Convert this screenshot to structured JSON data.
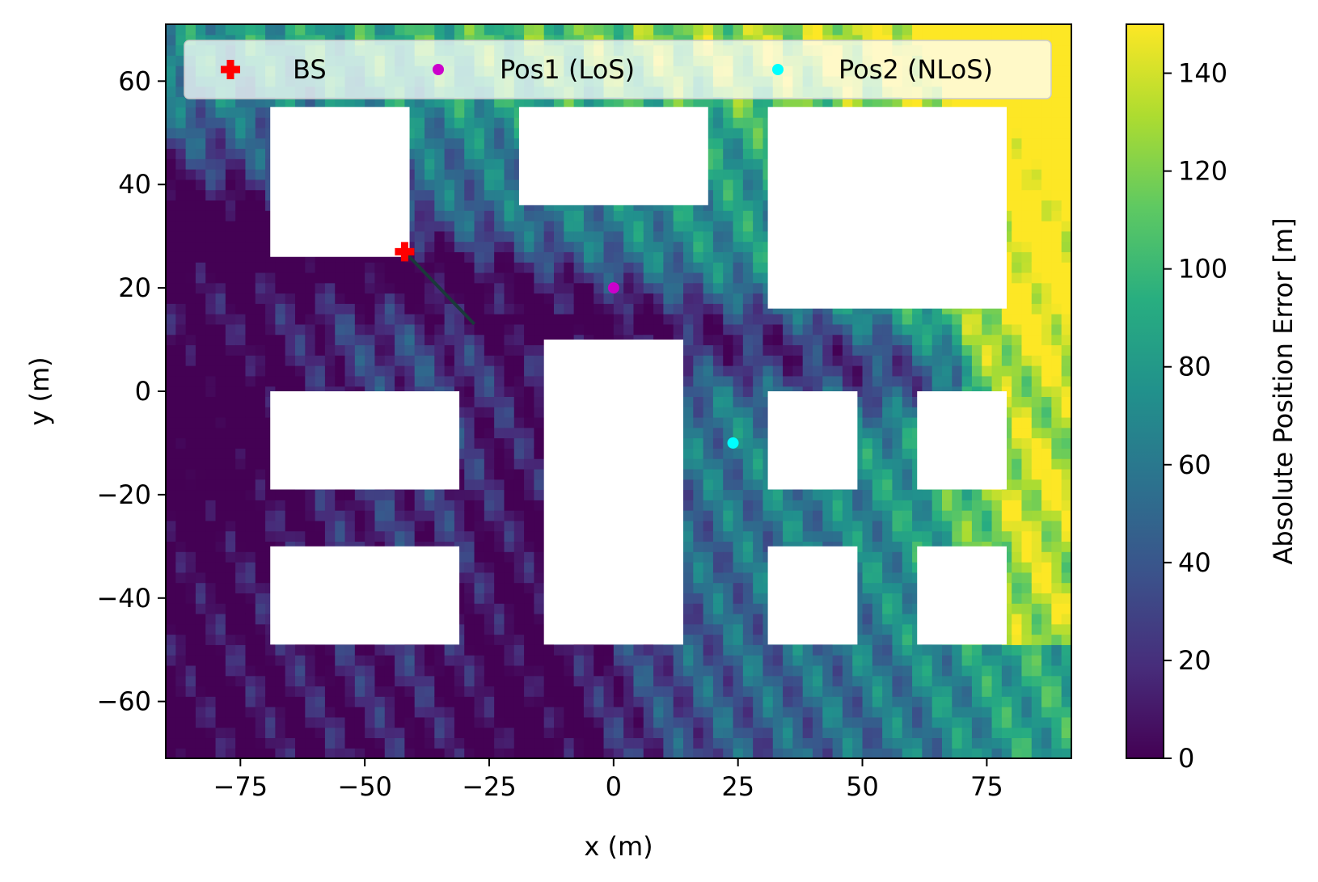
{
  "chart_data": {
    "type": "heatmap",
    "xlabel": "x (m)",
    "ylabel": "y (m)",
    "xlim": [
      -90,
      92
    ],
    "ylim": [
      -71,
      71
    ],
    "x_ticks": [
      -75,
      -50,
      -25,
      0,
      25,
      50,
      75
    ],
    "x_tick_labels": [
      "−75",
      "−50",
      "−25",
      "0",
      "25",
      "50",
      "75"
    ],
    "y_ticks": [
      -60,
      -40,
      -20,
      0,
      20,
      40,
      60
    ],
    "y_tick_labels": [
      "−60",
      "−40",
      "−20",
      "0",
      "20",
      "40",
      "60"
    ],
    "colorbar": {
      "label": "Absolute Position Error [m]",
      "range": [
        0,
        150
      ],
      "ticks": [
        0,
        20,
        40,
        60,
        80,
        100,
        120,
        140
      ],
      "tick_labels": [
        "0",
        "20",
        "40",
        "60",
        "80",
        "100",
        "120",
        "140"
      ],
      "colormap": "viridis"
    },
    "buildings": [
      {
        "x0": -69,
        "x1": -41,
        "y0": 26,
        "y1": 55
      },
      {
        "x0": -19,
        "x1": 19,
        "y0": 36,
        "y1": 55
      },
      {
        "x0": 31,
        "x1": 79,
        "y0": 16,
        "y1": 55
      },
      {
        "x0": -69,
        "x1": -31,
        "y0": -19,
        "y1": 0
      },
      {
        "x0": -14,
        "x1": 14,
        "y0": -49,
        "y1": 10
      },
      {
        "x0": 31,
        "x1": 49,
        "y0": -19,
        "y1": 0
      },
      {
        "x0": 61,
        "x1": 79,
        "y0": -19,
        "y1": 0
      },
      {
        "x0": -69,
        "x1": -31,
        "y0": -49,
        "y1": -30
      },
      {
        "x0": 31,
        "x1": 49,
        "y0": -49,
        "y1": -30
      },
      {
        "x0": 61,
        "x1": 79,
        "y0": -49,
        "y1": -30
      }
    ],
    "series": [
      {
        "name": "BS",
        "marker": "plus",
        "color": "#ff0000",
        "x": [
          -42
        ],
        "y": [
          27
        ]
      },
      {
        "name": "Pos1 (LoS)",
        "marker": "dot",
        "color": "#cc00cc",
        "x": [
          0
        ],
        "y": [
          20
        ]
      },
      {
        "name": "Pos2 (NLoS)",
        "marker": "dot",
        "color": "#00ffff",
        "x": [
          24
        ],
        "y": [
          -10
        ]
      }
    ],
    "bs_direction_line": {
      "x": [
        -42,
        -28
      ],
      "y": [
        27,
        13
      ],
      "color": "#1a3a3a"
    },
    "legend": {
      "placement": "top",
      "ncol": 3
    }
  }
}
